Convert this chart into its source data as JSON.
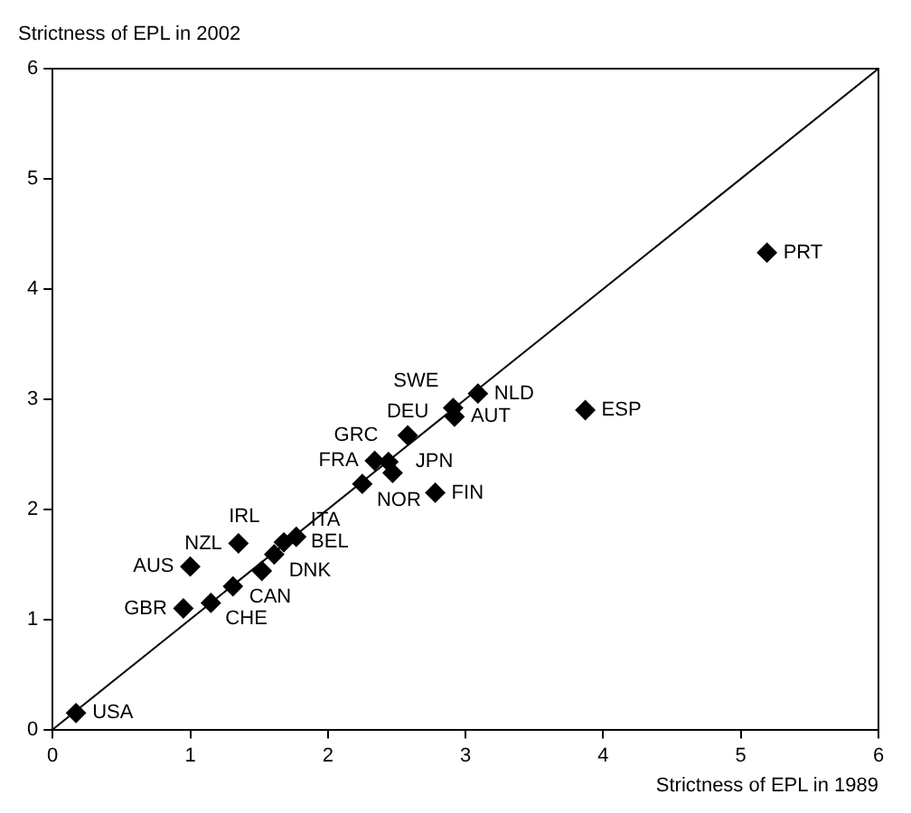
{
  "chart_data": {
    "type": "scatter",
    "xlabel": "Strictness of EPL in 1989",
    "ylabel": "Strictness of EPL in 2002",
    "xlim": [
      0,
      6
    ],
    "ylim": [
      0,
      6
    ],
    "xticks": [
      0,
      1,
      2,
      3,
      4,
      5,
      6
    ],
    "yticks": [
      0,
      1,
      2,
      3,
      4,
      5,
      6
    ],
    "grid": false,
    "legend": false,
    "marker": "diamond",
    "series": [
      {
        "color": "#000000",
        "x": [
          0.17,
          0.95,
          1.15,
          1.31,
          1.0,
          1.52,
          1.61,
          1.35,
          1.68,
          1.77,
          2.25,
          2.34,
          2.44,
          2.47,
          2.78,
          2.58,
          2.91,
          2.92,
          3.09,
          3.87,
          5.19
        ],
        "values": [
          0.15,
          1.1,
          1.15,
          1.3,
          1.48,
          1.44,
          1.59,
          1.69,
          1.7,
          1.75,
          2.23,
          2.44,
          2.43,
          2.33,
          2.15,
          2.67,
          2.92,
          2.84,
          3.05,
          2.9,
          4.33
        ]
      },
      {
        "type": "line",
        "color": "#000000",
        "marker": "none",
        "x": [
          0,
          6
        ],
        "values": [
          0,
          6
        ]
      }
    ],
    "annotations": [
      {
        "text": "USA",
        "x": 0.17,
        "y": 0.15
      },
      {
        "text": "GBR",
        "x": 0.95,
        "y": 1.1
      },
      {
        "text": "CHE",
        "x": 1.15,
        "y": 1.15
      },
      {
        "text": "CAN",
        "x": 1.31,
        "y": 1.3
      },
      {
        "text": "AUS",
        "x": 1.0,
        "y": 1.48
      },
      {
        "text": "DNK",
        "x": 1.52,
        "y": 1.44
      },
      {
        "text": "IRL",
        "x": 1.61,
        "y": 1.59
      },
      {
        "text": "NZL",
        "x": 1.35,
        "y": 1.69
      },
      {
        "text": "BEL",
        "x": 1.68,
        "y": 1.7
      },
      {
        "text": "ITA",
        "x": 1.77,
        "y": 1.75
      },
      {
        "text": "NOR",
        "x": 2.25,
        "y": 2.23
      },
      {
        "text": "FRA",
        "x": 2.34,
        "y": 2.44
      },
      {
        "text": "JPN",
        "x": 2.44,
        "y": 2.43
      },
      {
        "text": "GRC",
        "x": 2.47,
        "y": 2.33
      },
      {
        "text": "FIN",
        "x": 2.78,
        "y": 2.15
      },
      {
        "text": "DEU",
        "x": 2.58,
        "y": 2.67
      },
      {
        "text": "AUT",
        "x": 2.92,
        "y": 2.84
      },
      {
        "text": "SWE",
        "x": 2.91,
        "y": 2.92
      },
      {
        "text": "NLD",
        "x": 3.09,
        "y": 3.05
      },
      {
        "text": "ESP",
        "x": 3.87,
        "y": 2.9
      },
      {
        "text": "PRT",
        "x": 5.19,
        "y": 4.33
      }
    ]
  }
}
